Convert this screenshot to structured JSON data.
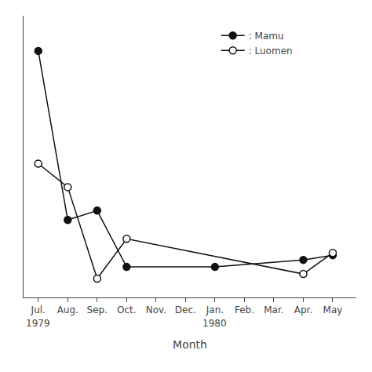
{
  "chart_data": {
    "type": "line",
    "xlabel": "Month",
    "series": [
      {
        "name": ": Mamu",
        "color": "#111111",
        "marker": "filled",
        "x": [
          0,
          1,
          2,
          3,
          6,
          9,
          10
        ],
        "values": [
          100,
          28,
          32,
          8,
          8,
          11,
          13
        ]
      },
      {
        "name": ": Luomen",
        "color": "#111111",
        "marker": "open",
        "x": [
          0,
          1,
          2,
          3,
          9,
          10
        ],
        "values": [
          52,
          42,
          3,
          20,
          5,
          14
        ]
      }
    ],
    "xlim": [
      -0.5,
      10.8
    ],
    "ylim": [
      -5,
      115
    ],
    "xticks": [
      {
        "value": 0,
        "label": "Jul."
      },
      {
        "value": 1,
        "label": "Aug."
      },
      {
        "value": 2,
        "label": "Sep."
      },
      {
        "value": 3,
        "label": "Oct."
      },
      {
        "value": 4,
        "label": "Nov."
      },
      {
        "value": 5,
        "label": "Dec."
      },
      {
        "value": 6,
        "label": "Jan."
      },
      {
        "value": 7,
        "label": "Feb."
      },
      {
        "value": 8,
        "label": "Mar."
      },
      {
        "value": 9,
        "label": "Apr."
      },
      {
        "value": 10,
        "label": "May"
      }
    ],
    "annotations": [
      {
        "text": "1979",
        "x": 0
      },
      {
        "text": "1980",
        "x": 6
      }
    ],
    "tick_labels": "x",
    "grid": false,
    "legend": "upper right"
  }
}
